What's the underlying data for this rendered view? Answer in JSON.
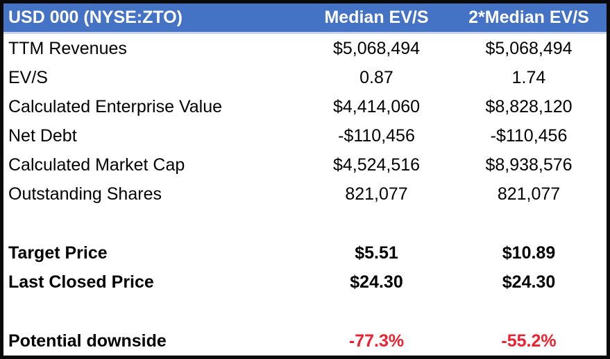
{
  "chart_data": {
    "type": "table",
    "title": "USD 000 (NYSE:ZTO)",
    "columns": [
      "USD 000 (NYSE:ZTO)",
      "Median EV/S",
      "2*Median EV/S"
    ],
    "rows": [
      {
        "label": "TTM Revenues",
        "median_evs": "$5,068,494",
        "double_median_evs": "$5,068,494"
      },
      {
        "label": "EV/S",
        "median_evs": "0.87",
        "double_median_evs": "1.74"
      },
      {
        "label": "Calculated Enterprise Value",
        "median_evs": "$4,414,060",
        "double_median_evs": "$8,828,120"
      },
      {
        "label": "Net Debt",
        "median_evs": "-$110,456",
        "double_median_evs": "-$110,456"
      },
      {
        "label": "Calculated Market Cap",
        "median_evs": "$4,524,516",
        "double_median_evs": "$8,938,576"
      },
      {
        "label": "Outstanding Shares",
        "median_evs": "821,077",
        "double_median_evs": "821,077"
      },
      {
        "label": "Target Price",
        "median_evs": "$5.51",
        "double_median_evs": "$10.89"
      },
      {
        "label": "Last Closed Price",
        "median_evs": "$24.30",
        "double_median_evs": "$24.30"
      },
      {
        "label": "Potential downside",
        "median_evs": "-77.3%",
        "double_median_evs": "-55.2%"
      }
    ],
    "layout": {
      "grid": "off",
      "legend": "none",
      "value_columns_alignment": "center",
      "label_column_alignment": "left"
    }
  },
  "colors": {
    "header_bg": "#4472C4",
    "header_text": "#FFFFFF",
    "header_underline": "#C7D3EC",
    "body_text": "#000000",
    "negative_pct_red": "#EE2130",
    "outer_border": "#0A0A0A"
  }
}
